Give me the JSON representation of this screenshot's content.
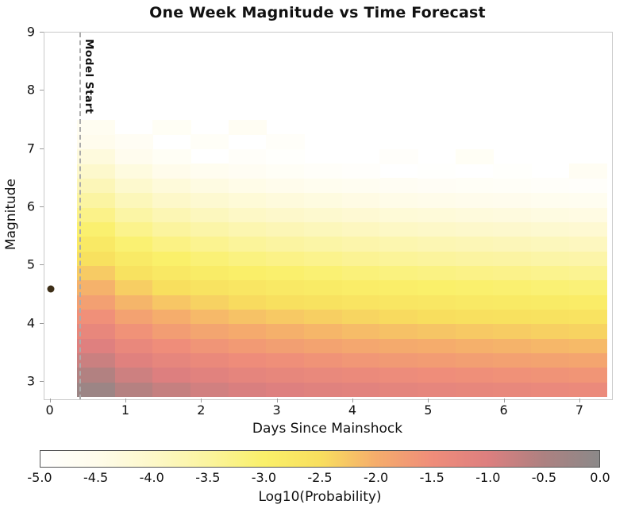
{
  "chart_data": {
    "type": "heatmap",
    "title": "One Week Magnitude vs Time Forecast",
    "xlabel": "Days Since Mainshock",
    "ylabel": "Magnitude",
    "colorbar_label": "Log10(Probability)",
    "colorbar_ticks": [
      "-5.0",
      "-4.5",
      "-4.0",
      "-3.5",
      "-3.0",
      "-2.5",
      "-2.0",
      "-1.5",
      "-1.0",
      "-0.5",
      "0.0"
    ],
    "value_range": [
      -5,
      0
    ],
    "x_range": [
      -0.08,
      7.42
    ],
    "y_range": [
      2.7,
      9.0
    ],
    "x_ticks": [
      0,
      1,
      2,
      3,
      4,
      5,
      6,
      7
    ],
    "y_ticks": [
      3,
      4,
      5,
      6,
      7,
      8,
      9
    ],
    "grid": false,
    "x_bin_edges": [
      0.35,
      0.85,
      1.35,
      1.85,
      2.35,
      2.85,
      3.35,
      3.85,
      4.35,
      4.85,
      5.35,
      5.85,
      6.35,
      6.85,
      7.35
    ],
    "mag_bin_edges": [
      2.75,
      3.0,
      3.25,
      3.5,
      3.75,
      4.0,
      4.25,
      4.5,
      4.75,
      5.0,
      5.25,
      5.5,
      5.75,
      6.0,
      6.25,
      6.5,
      6.75,
      7.0,
      7.25,
      7.5
    ],
    "values_rows_bottom_to_top": [
      [
        -0.25,
        -0.58,
        -0.75,
        -0.87,
        -0.96,
        -1.03,
        -1.09,
        -1.15,
        -1.2,
        -1.24,
        -1.28,
        -1.31,
        -1.35,
        -1.38
      ],
      [
        -0.55,
        -0.83,
        -1.0,
        -1.12,
        -1.21,
        -1.28,
        -1.34,
        -1.4,
        -1.45,
        -1.49,
        -1.53,
        -1.56,
        -1.6,
        -1.63
      ],
      [
        -0.8,
        -1.08,
        -1.25,
        -1.37,
        -1.46,
        -1.53,
        -1.59,
        -1.65,
        -1.7,
        -1.74,
        -1.78,
        -1.81,
        -1.85,
        -1.88
      ],
      [
        -1.05,
        -1.33,
        -1.5,
        -1.62,
        -1.71,
        -1.78,
        -1.84,
        -1.9,
        -1.95,
        -1.99,
        -2.03,
        -2.06,
        -2.1,
        -2.13
      ],
      [
        -1.3,
        -1.58,
        -1.75,
        -1.87,
        -1.96,
        -2.03,
        -2.09,
        -2.15,
        -2.2,
        -2.24,
        -2.28,
        -2.31,
        -2.35,
        -2.38
      ],
      [
        -1.55,
        -1.83,
        -2.0,
        -2.12,
        -2.21,
        -2.28,
        -2.34,
        -2.4,
        -2.45,
        -2.49,
        -2.53,
        -2.56,
        -2.6,
        -2.63
      ],
      [
        -1.8,
        -2.08,
        -2.25,
        -2.37,
        -2.46,
        -2.53,
        -2.59,
        -2.65,
        -2.7,
        -2.74,
        -2.78,
        -2.81,
        -2.85,
        -2.88
      ],
      [
        -2.05,
        -2.33,
        -2.5,
        -2.62,
        -2.71,
        -2.78,
        -2.84,
        -2.9,
        -2.95,
        -2.99,
        -3.03,
        -3.06,
        -3.1,
        -3.13
      ],
      [
        -2.3,
        -2.58,
        -2.75,
        -2.87,
        -2.96,
        -3.03,
        -3.09,
        -3.15,
        -3.2,
        -3.24,
        -3.28,
        -3.31,
        -3.35,
        -3.38
      ],
      [
        -2.55,
        -2.83,
        -3.0,
        -3.12,
        -3.21,
        -3.28,
        -3.34,
        -3.4,
        -3.45,
        -3.49,
        -3.53,
        -3.56,
        -3.6,
        -3.63
      ],
      [
        -2.8,
        -3.08,
        -3.25,
        -3.37,
        -3.46,
        -3.53,
        -3.59,
        -3.65,
        -3.7,
        -3.74,
        -3.78,
        -3.81,
        -3.85,
        -3.88
      ],
      [
        -3.05,
        -3.33,
        -3.5,
        -3.62,
        -3.71,
        -3.78,
        -3.84,
        -3.9,
        -3.95,
        -3.99,
        -4.03,
        -4.06,
        -4.1,
        -4.13
      ],
      [
        -3.3,
        -3.58,
        -3.75,
        -3.87,
        -3.96,
        -4.03,
        -4.09,
        -4.15,
        -4.2,
        -4.24,
        -4.28,
        -4.31,
        -4.35,
        -4.38
      ],
      [
        -3.55,
        -3.83,
        -4.0,
        -4.12,
        -4.21,
        -4.28,
        -4.34,
        -4.4,
        -4.45,
        -4.49,
        -4.53,
        -4.56,
        -4.6,
        -4.63
      ],
      [
        -3.8,
        -4.08,
        -4.25,
        -4.37,
        -4.46,
        -4.53,
        -4.59,
        -4.65,
        -4.7,
        -4.74,
        -4.78,
        -4.81,
        -4.85,
        -4.88
      ],
      [
        -4.05,
        -4.33,
        -4.5,
        -4.62,
        -4.71,
        -4.78,
        -4.84,
        -4.9,
        null,
        -4.95,
        null,
        -4.92,
        null,
        -4.7
      ],
      [
        -4.3,
        -4.58,
        -4.75,
        null,
        -4.85,
        -4.92,
        null,
        null,
        -4.88,
        null,
        -4.75,
        null,
        null,
        null
      ],
      [
        -4.55,
        -4.72,
        null,
        -4.8,
        null,
        -4.85,
        null,
        null,
        null,
        null,
        null,
        null,
        null,
        null
      ],
      [
        -4.65,
        null,
        -4.75,
        null,
        -4.7,
        null,
        null,
        null,
        null,
        null,
        null,
        null,
        null,
        null
      ]
    ],
    "color_stops": [
      {
        "value": -5.0,
        "color": "#ffffff"
      },
      {
        "value": -4.5,
        "color": "#fffceb"
      },
      {
        "value": -4.0,
        "color": "#fdf8c9"
      },
      {
        "value": -3.5,
        "color": "#fbf49e"
      },
      {
        "value": -3.0,
        "color": "#faf06a"
      },
      {
        "value": -2.5,
        "color": "#f8df5e"
      },
      {
        "value": -2.0,
        "color": "#f5ad6c"
      },
      {
        "value": -1.5,
        "color": "#ef8d7a"
      },
      {
        "value": -1.0,
        "color": "#dd7f7f"
      },
      {
        "value": -0.5,
        "color": "#ad8181"
      },
      {
        "value": 0.0,
        "color": "#8b8989"
      }
    ],
    "annotations": {
      "model_start_label": "Model Start",
      "model_start_x": 0.38,
      "mainshock": {
        "x": 0,
        "magnitude": 4.6
      }
    }
  }
}
